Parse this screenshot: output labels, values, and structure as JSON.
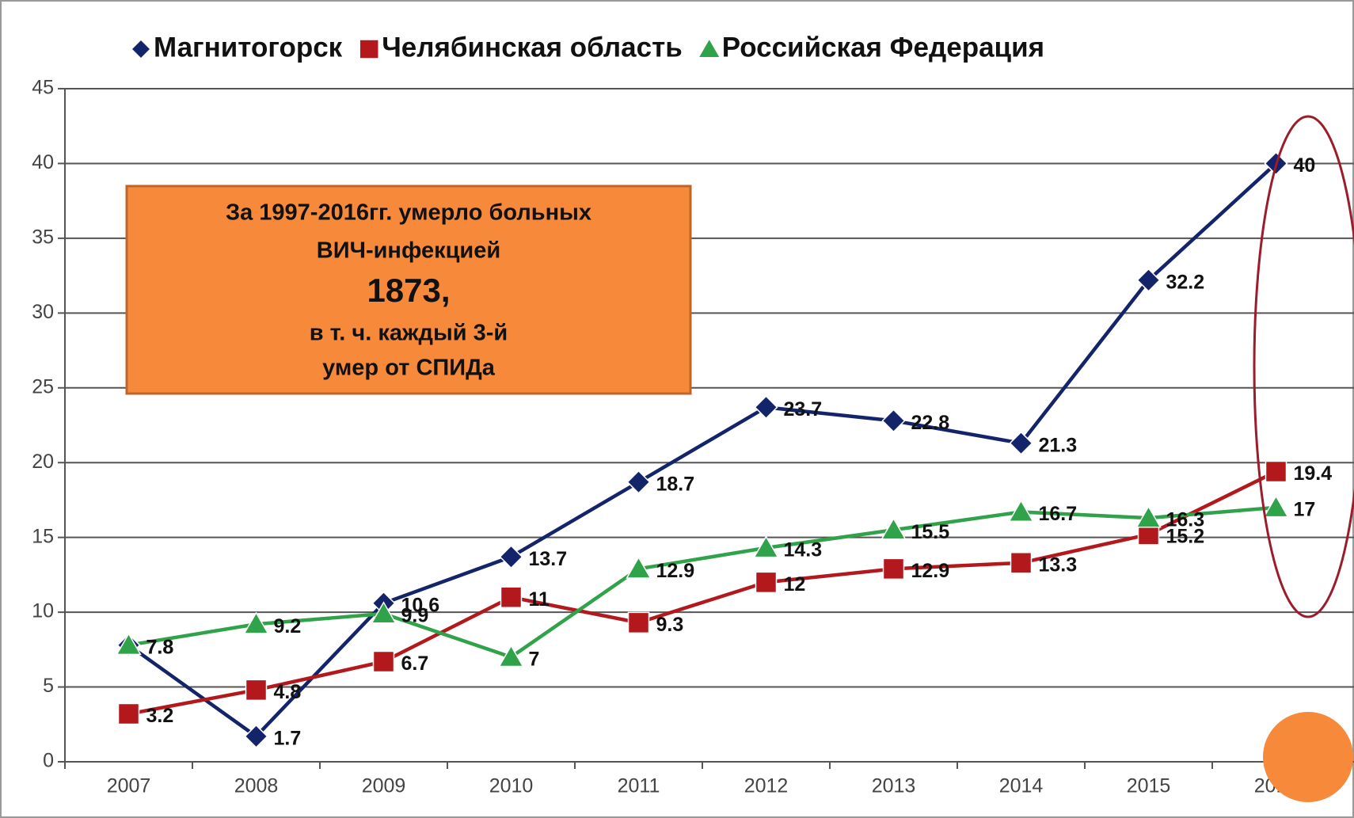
{
  "chart_data": {
    "type": "line",
    "categories": [
      "2007",
      "2008",
      "2009",
      "2010",
      "2011",
      "2012",
      "2013",
      "2014",
      "2015",
      "2016"
    ],
    "series": [
      {
        "name": "Магнитогорск",
        "color": "#14246a",
        "marker": "diamond",
        "values": [
          7.8,
          1.7,
          10.6,
          13.7,
          18.7,
          23.7,
          22.8,
          21.3,
          32.2,
          40
        ]
      },
      {
        "name": "Челябинская область",
        "color": "#b3191c",
        "marker": "square",
        "values": [
          3.2,
          4.8,
          6.7,
          11,
          9.3,
          12,
          12.9,
          13.3,
          15.2,
          19.4
        ]
      },
      {
        "name": "Российская Федерация",
        "color": "#2fa24a",
        "marker": "triangle",
        "values": [
          7.8,
          9.2,
          9.9,
          7,
          12.9,
          14.3,
          15.5,
          16.7,
          16.3,
          17
        ]
      }
    ],
    "ylim": [
      0,
      45
    ],
    "yticks": [
      0,
      5,
      10,
      15,
      20,
      25,
      30,
      35,
      40,
      45
    ],
    "grid": true,
    "legend": "top",
    "annotation": [
      "За 1997-2016гг. умерло больных",
      "ВИЧ-инфекцией",
      "1873,",
      "в т. ч. каждый 3-й",
      "умер от СПИДа"
    ]
  }
}
